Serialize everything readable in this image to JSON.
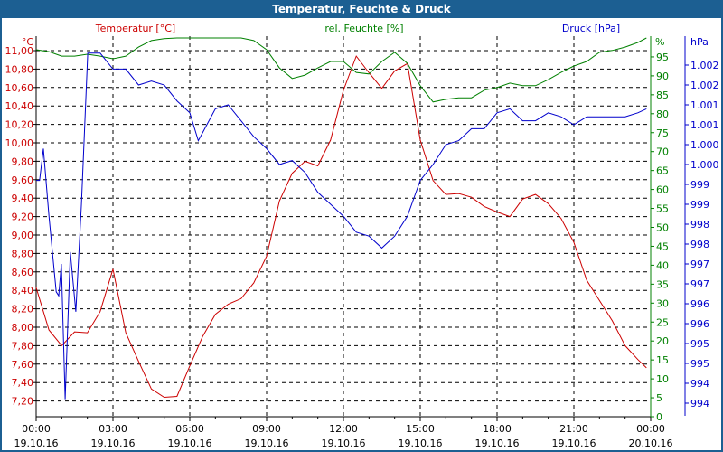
{
  "chart_data": {
    "type": "line",
    "title": "Temperatur, Feuchte & Druck",
    "grid": true,
    "colors": {
      "temperature": "#cc0000",
      "humidity": "#008000",
      "pressure": "#0000cc",
      "title_bar": "#1c5f92"
    },
    "x_ticks": [
      {
        "time": "00:00",
        "date": "19.10.16"
      },
      {
        "time": "03:00",
        "date": "19.10.16"
      },
      {
        "time": "06:00",
        "date": "19.10.16"
      },
      {
        "time": "09:00",
        "date": "19.10.16"
      },
      {
        "time": "12:00",
        "date": "19.10.16"
      },
      {
        "time": "15:00",
        "date": "19.10.16"
      },
      {
        "time": "18:00",
        "date": "19.10.16"
      },
      {
        "time": "21:00",
        "date": "19.10.16"
      },
      {
        "time": "00:00",
        "date": "20.10.16"
      }
    ],
    "xlim": [
      "19.10.16 00:00",
      "20.10.16 00:00"
    ],
    "axes": {
      "temperature": {
        "label": "Temperatur [°C]",
        "unit": "°C",
        "ticks": [
          "7,20",
          "7,40",
          "7,60",
          "7,80",
          "8,00",
          "8,20",
          "8,40",
          "8,60",
          "8,80",
          "9,00",
          "9,20",
          "9,40",
          "9,60",
          "9,80",
          "10,00",
          "10,20",
          "10,40",
          "10,60",
          "10,80",
          "11,00"
        ],
        "ylim": [
          7.04,
          11.16
        ]
      },
      "humidity": {
        "label": "rel. Feuchte [%]",
        "unit": "%",
        "ticks": [
          "0",
          "5",
          "10",
          "15",
          "20",
          "25",
          "30",
          "35",
          "40",
          "45",
          "50",
          "55",
          "60",
          "65",
          "70",
          "75",
          "80",
          "85",
          "90",
          "95"
        ],
        "ylim": [
          0,
          100
        ]
      },
      "pressure": {
        "label": "Druck [hPa]",
        "unit": "hPa",
        "ticks": [
          "994",
          "994",
          "995",
          "995",
          "996",
          "996",
          "997",
          "997",
          "998",
          "998",
          "999",
          "999",
          "1.000",
          "1.000",
          "1.001",
          "1.001",
          "1.002",
          "1.002"
        ],
        "tick_values": [
          993.9,
          994.4,
          994.9,
          995.4,
          995.9,
          996.4,
          996.9,
          997.4,
          997.9,
          998.4,
          998.9,
          999.4,
          999.9,
          1000.4,
          1000.9,
          1001.4,
          1001.9,
          1002.4
        ]
      }
    },
    "times": [
      "00:00",
      "00:30",
      "01:00",
      "01:30",
      "02:00",
      "02:30",
      "03:00",
      "03:30",
      "04:00",
      "04:30",
      "05:00",
      "05:30",
      "06:00",
      "06:30",
      "07:00",
      "07:30",
      "08:00",
      "08:30",
      "09:00",
      "09:30",
      "10:00",
      "10:30",
      "11:00",
      "11:30",
      "12:00",
      "12:30",
      "13:00",
      "13:30",
      "14:00",
      "14:30",
      "15:00",
      "15:30",
      "16:00",
      "16:30",
      "17:00",
      "17:30",
      "18:00",
      "18:30",
      "19:00",
      "19:30",
      "20:00",
      "20:30",
      "21:00",
      "21:30",
      "22:00",
      "22:30",
      "23:00",
      "23:30",
      "23:50"
    ],
    "series": [
      {
        "name": "Temperatur [°C]",
        "axis": "temperature",
        "values": [
          8.43,
          7.97,
          7.8,
          7.95,
          7.94,
          8.17,
          8.63,
          7.94,
          7.63,
          7.33,
          7.24,
          7.25,
          7.58,
          7.9,
          8.14,
          8.25,
          8.31,
          8.48,
          8.77,
          9.37,
          9.67,
          9.8,
          9.75,
          10.03,
          10.57,
          10.94,
          10.76,
          10.59,
          10.78,
          10.86,
          10.03,
          9.59,
          9.44,
          9.45,
          9.41,
          9.31,
          9.25,
          9.2,
          9.39,
          9.44,
          9.34,
          9.18,
          8.92,
          8.51,
          8.29,
          8.07,
          7.8,
          7.65,
          7.56
        ]
      },
      {
        "name": "rel. Feuchte [%]",
        "axis": "humidity",
        "values": [
          96.9,
          96.4,
          95.2,
          95.2,
          95.7,
          95.2,
          94.5,
          95.2,
          97.6,
          99.3,
          99.8,
          100,
          100,
          100,
          100,
          100,
          100,
          99.3,
          96.9,
          92.1,
          89.3,
          90.2,
          92.1,
          93.8,
          93.8,
          90.9,
          90.5,
          93.8,
          96.2,
          93.3,
          87.4,
          83.1,
          83.8,
          84.2,
          84.2,
          86.2,
          86.9,
          88.1,
          87.4,
          87.4,
          89.0,
          90.9,
          92.6,
          93.8,
          96.2,
          96.7,
          97.6,
          98.8,
          100
        ]
      },
      {
        "name": "Druck [hPa]",
        "axis": "pressure",
        "times": [
          "00:00",
          "00:08",
          "00:17",
          "00:30",
          "00:47",
          "00:53",
          "00:59",
          "01:08",
          "01:20",
          "01:33",
          "01:46",
          "02:01",
          "02:30",
          "03:00",
          "03:30",
          "04:00",
          "04:30",
          "05:00",
          "05:30",
          "06:00",
          "06:20",
          "06:30",
          "07:00",
          "07:30",
          "08:00",
          "08:30",
          "09:00",
          "09:30",
          "10:00",
          "10:30",
          "11:00",
          "11:30",
          "12:00",
          "12:30",
          "13:00",
          "13:30",
          "14:00",
          "14:30",
          "15:00",
          "15:30",
          "16:00",
          "16:30",
          "17:00",
          "17:30",
          "18:00",
          "18:30",
          "19:00",
          "19:30",
          "20:00",
          "20:30",
          "21:00",
          "21:30",
          "22:00",
          "22:30",
          "23:00",
          "23:30",
          "23:50"
        ],
        "values": [
          999.5,
          999.5,
          1000.3,
          998.6,
          996.7,
          996.6,
          997.4,
          994.0,
          997.7,
          996.2,
          998.9,
          1002.7,
          1002.7,
          1002.3,
          1002.3,
          1001.9,
          1002.0,
          1001.9,
          1001.5,
          1001.2,
          1000.5,
          1000.7,
          1001.3,
          1001.4,
          1001.0,
          1000.6,
          1000.3,
          999.9,
          1000.0,
          999.7,
          999.2,
          998.9,
          998.6,
          998.2,
          998.1,
          997.8,
          998.1,
          998.6,
          999.5,
          999.9,
          1000.4,
          1000.5,
          1000.8,
          1000.8,
          1001.2,
          1001.3,
          1001.0,
          1001.0,
          1001.2,
          1001.1,
          1000.9,
          1001.1,
          1001.1,
          1001.1,
          1001.1,
          1001.2,
          1001.3
        ]
      }
    ]
  }
}
